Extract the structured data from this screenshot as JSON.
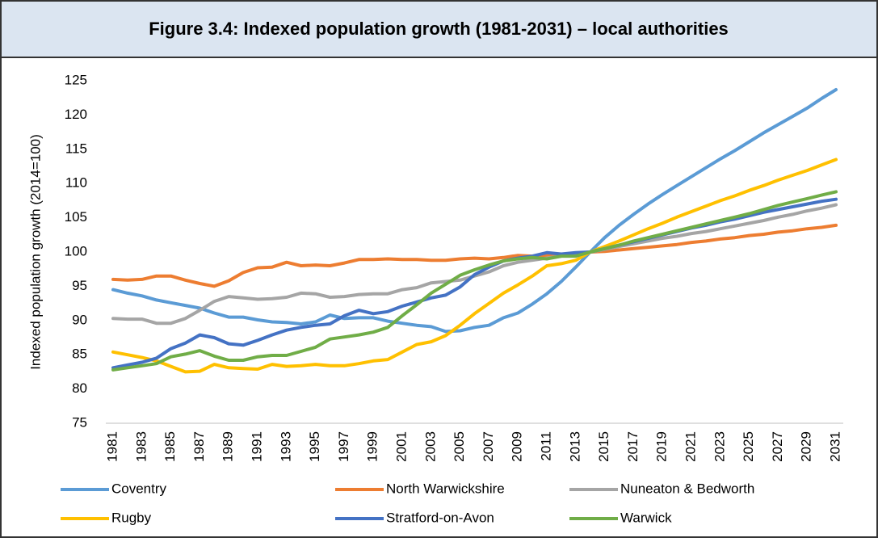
{
  "chart_data": {
    "type": "line",
    "title": "Figure 3.4: Indexed population growth (1981-2031) – local authorities",
    "y_label": "Indexed population growth (2014=100)",
    "categories": [
      "1981",
      null,
      "1983",
      null,
      "1985",
      null,
      "1987",
      null,
      "1989",
      null,
      "1991",
      null,
      "1993",
      null,
      "1995",
      null,
      "1997",
      null,
      "1999",
      null,
      "2001",
      null,
      "2003",
      null,
      "2005",
      null,
      "2007",
      null,
      "2009",
      null,
      "2011",
      null,
      "2013",
      null,
      "2015",
      null,
      "2017",
      null,
      "2019",
      null,
      "2021",
      null,
      "2023",
      null,
      "2025",
      null,
      "2027",
      null,
      "2029",
      null,
      "2031"
    ],
    "ylim": [
      75,
      125
    ],
    "yticks": [
      75,
      80,
      85,
      90,
      95,
      100,
      105,
      110,
      115,
      120,
      125
    ],
    "grid": false,
    "legend": "bottom",
    "series": [
      {
        "name": "Coventry",
        "color": "#5b9bd5",
        "values": [
          94.5,
          94.0,
          93.6,
          93.0,
          92.6,
          92.2,
          91.8,
          91.1,
          90.5,
          90.5,
          90.1,
          89.8,
          89.7,
          89.5,
          89.8,
          90.8,
          90.3,
          90.4,
          90.4,
          89.9,
          89.6,
          89.3,
          89.1,
          88.4,
          88.5,
          89.0,
          89.3,
          90.4,
          91.1,
          92.4,
          93.9,
          95.7,
          97.8,
          100,
          102.1,
          103.9,
          105.5,
          107.0,
          108.4,
          109.7,
          111.0,
          112.3,
          113.6,
          114.8,
          116.1,
          117.4,
          118.6,
          119.8,
          121.0,
          122.4,
          123.7
        ]
      },
      {
        "name": "North Warwickshire",
        "color": "#ed7d31",
        "values": [
          96.0,
          95.9,
          96.0,
          96.5,
          96.5,
          95.9,
          95.4,
          95.0,
          95.8,
          97.0,
          97.7,
          97.8,
          98.5,
          98.0,
          98.1,
          98.0,
          98.4,
          98.9,
          98.9,
          99.0,
          98.9,
          98.9,
          98.8,
          98.8,
          99.0,
          99.1,
          99.0,
          99.2,
          99.5,
          99.4,
          99.5,
          99.6,
          99.8,
          100,
          100.1,
          100.3,
          100.5,
          100.7,
          100.9,
          101.1,
          101.4,
          101.6,
          101.9,
          102.1,
          102.4,
          102.6,
          102.9,
          103.1,
          103.4,
          103.6,
          103.9
        ]
      },
      {
        "name": "Nuneaton & Bedworth",
        "color": "#a5a5a5",
        "values": [
          90.3,
          90.2,
          90.2,
          89.6,
          89.6,
          90.3,
          91.5,
          92.8,
          93.5,
          93.3,
          93.1,
          93.2,
          93.4,
          94.0,
          93.9,
          93.4,
          93.5,
          93.8,
          93.9,
          93.9,
          94.5,
          94.8,
          95.5,
          95.7,
          95.9,
          96.5,
          97.1,
          98.0,
          98.5,
          98.8,
          99.1,
          99.4,
          99.7,
          100,
          100.4,
          100.8,
          101.2,
          101.6,
          102.0,
          102.3,
          102.7,
          103.0,
          103.4,
          103.8,
          104.2,
          104.6,
          105.1,
          105.5,
          106.0,
          106.4,
          106.9
        ]
      },
      {
        "name": "Rugby",
        "color": "#ffc000",
        "values": [
          85.4,
          85.0,
          84.6,
          84.1,
          83.3,
          82.5,
          82.6,
          83.6,
          83.1,
          83.0,
          82.9,
          83.6,
          83.3,
          83.4,
          83.6,
          83.4,
          83.4,
          83.7,
          84.1,
          84.3,
          85.4,
          86.5,
          86.9,
          87.8,
          89.3,
          91.0,
          92.5,
          94.0,
          95.2,
          96.5,
          98.0,
          98.3,
          98.8,
          100,
          100.8,
          101.6,
          102.5,
          103.4,
          104.2,
          105.1,
          105.9,
          106.7,
          107.5,
          108.2,
          109.0,
          109.7,
          110.5,
          111.2,
          111.9,
          112.7,
          113.5
        ]
      },
      {
        "name": "Stratford-on-Avon",
        "color": "#4472c4",
        "values": [
          83.1,
          83.5,
          83.9,
          84.5,
          85.9,
          86.7,
          87.9,
          87.5,
          86.6,
          86.4,
          87.1,
          87.9,
          88.6,
          89.0,
          89.3,
          89.5,
          90.7,
          91.5,
          91.0,
          91.3,
          92.1,
          92.7,
          93.3,
          93.7,
          94.9,
          96.7,
          97.8,
          98.7,
          99.1,
          99.4,
          99.9,
          99.7,
          99.9,
          100,
          100.5,
          101.0,
          101.5,
          102.0,
          102.5,
          103.0,
          103.5,
          103.9,
          104.4,
          104.8,
          105.3,
          105.8,
          106.2,
          106.6,
          107.0,
          107.4,
          107.7
        ]
      },
      {
        "name": "Warwick",
        "color": "#70ad47",
        "values": [
          82.8,
          83.1,
          83.4,
          83.7,
          84.7,
          85.1,
          85.6,
          84.8,
          84.2,
          84.2,
          84.7,
          84.9,
          84.9,
          85.5,
          86.1,
          87.3,
          87.6,
          87.9,
          88.3,
          89.0,
          90.7,
          92.3,
          94.0,
          95.3,
          96.6,
          97.4,
          98.1,
          98.7,
          99.0,
          99.2,
          99.0,
          99.4,
          99.4,
          100,
          100.5,
          101.0,
          101.6,
          102.1,
          102.6,
          103.1,
          103.6,
          104.1,
          104.6,
          105.1,
          105.6,
          106.2,
          106.8,
          107.3,
          107.8,
          108.3,
          108.8
        ]
      }
    ]
  }
}
